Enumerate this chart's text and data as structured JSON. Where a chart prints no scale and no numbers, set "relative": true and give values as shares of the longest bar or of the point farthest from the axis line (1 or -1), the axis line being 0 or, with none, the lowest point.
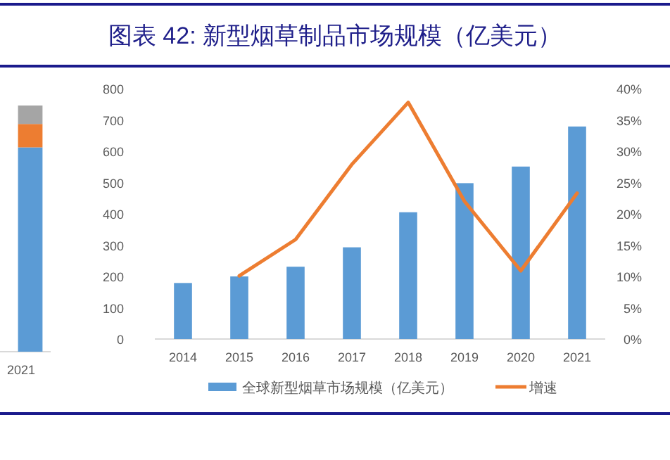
{
  "chart_data": [
    {
      "type": "bar",
      "stacked": true,
      "relative": true,
      "categories": [
        "2021"
      ],
      "series": [
        {
          "color": "#5b9bd5",
          "values": [
            0.83
          ]
        },
        {
          "color": "#ed7d31",
          "values": [
            0.095
          ]
        },
        {
          "color": "#a5a5a5",
          "values": [
            0.075
          ]
        }
      ],
      "legend": false
    },
    {
      "type": "bar",
      "title": "图表 42: 新型烟草制品市场规模（亿美元）",
      "categories": [
        "2014",
        "2015",
        "2016",
        "2017",
        "2018",
        "2019",
        "2020",
        "2021"
      ],
      "series": [
        {
          "name": "全球新型烟草市场规模（亿美元）",
          "type": "bar",
          "color": "#5b9bd5",
          "values": [
            179,
            200,
            231,
            293,
            405,
            498,
            551,
            679
          ]
        },
        {
          "name": "增速",
          "type": "line",
          "axis": "y2",
          "color": "#ed7d31",
          "values": [
            null,
            10.1,
            15.9,
            27.9,
            37.8,
            22.0,
            10.9,
            23.3
          ]
        }
      ],
      "ylim": [
        0,
        800
      ],
      "yticks": [
        0,
        100,
        200,
        300,
        400,
        500,
        600,
        700,
        800
      ],
      "y2lim": [
        0,
        40
      ],
      "y2ticks": [
        {
          "value": 0,
          "label": "0%"
        },
        {
          "value": 5,
          "label": "5%"
        },
        {
          "value": 10,
          "label": "10%"
        },
        {
          "value": 15,
          "label": "15%"
        },
        {
          "value": 20,
          "label": "20%"
        },
        {
          "value": 25,
          "label": "25%"
        },
        {
          "value": 30,
          "label": "30%"
        },
        {
          "value": 35,
          "label": "35%"
        },
        {
          "value": 40,
          "label": "40%"
        }
      ],
      "legend": "bottom",
      "grid": false,
      "marker": "none"
    }
  ]
}
